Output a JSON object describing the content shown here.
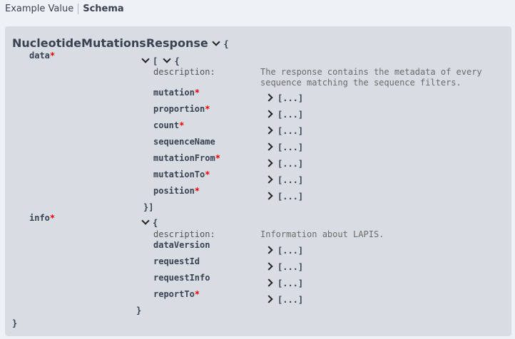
{
  "tabs": [
    {
      "label": "Example Value"
    },
    {
      "label": "Schema",
      "active": true
    }
  ],
  "schema": {
    "title": "NucleotideMutationsResponse",
    "collapsed_label": "[...]",
    "data": {
      "name": "data",
      "required": true,
      "description_label": "description:",
      "description": "The response contains the metadata of every sequence matching the sequence filters.",
      "description_lines": [
        "The response contains the metadata of every",
        "sequence matching the sequence filters."
      ],
      "properties": [
        {
          "name": "mutation",
          "required": true
        },
        {
          "name": "proportion",
          "required": true
        },
        {
          "name": "count",
          "required": true
        },
        {
          "name": "sequenceName",
          "required": false
        },
        {
          "name": "mutationFrom",
          "required": true
        },
        {
          "name": "mutationTo",
          "required": true
        },
        {
          "name": "position",
          "required": true
        }
      ]
    },
    "info": {
      "name": "info",
      "required": true,
      "description_label": "description:",
      "description": "Information about LAPIS.",
      "properties": [
        {
          "name": "dataVersion",
          "required": false
        },
        {
          "name": "requestId",
          "required": false
        },
        {
          "name": "requestInfo",
          "required": false
        },
        {
          "name": "reportTo",
          "required": true
        }
      ]
    }
  }
}
